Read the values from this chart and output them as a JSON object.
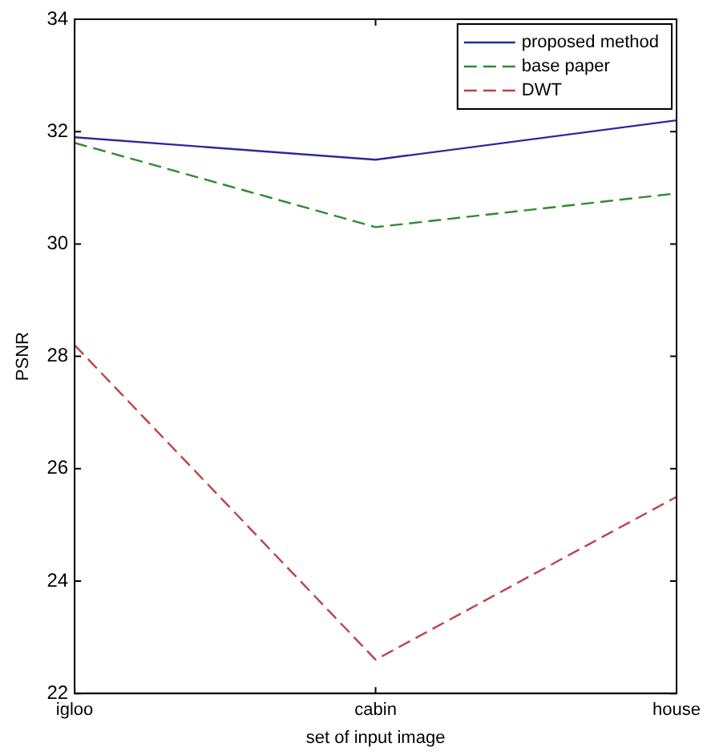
{
  "chart_data": {
    "type": "line",
    "xlabel": "set of input image",
    "ylabel": "PSNR",
    "categories": [
      "igloo",
      "cabin",
      "house"
    ],
    "series": [
      {
        "name": "proposed method",
        "color": "#2a2a9c",
        "values": [
          31.9,
          31.5,
          32.2
        ],
        "line_style": "solid"
      },
      {
        "name": "base paper",
        "color": "#2e8b2e",
        "values": [
          31.8,
          30.3,
          30.9
        ],
        "line_style": "dashed"
      },
      {
        "name": "DWT",
        "color": "#c0404a",
        "values": [
          28.2,
          22.6,
          25.5
        ],
        "line_style": "dashed"
      }
    ],
    "ylim": [
      22,
      34
    ],
    "yticks": [
      22,
      24,
      26,
      28,
      30,
      32,
      34
    ],
    "grid": false,
    "legend": "top right",
    "marker": "none"
  }
}
